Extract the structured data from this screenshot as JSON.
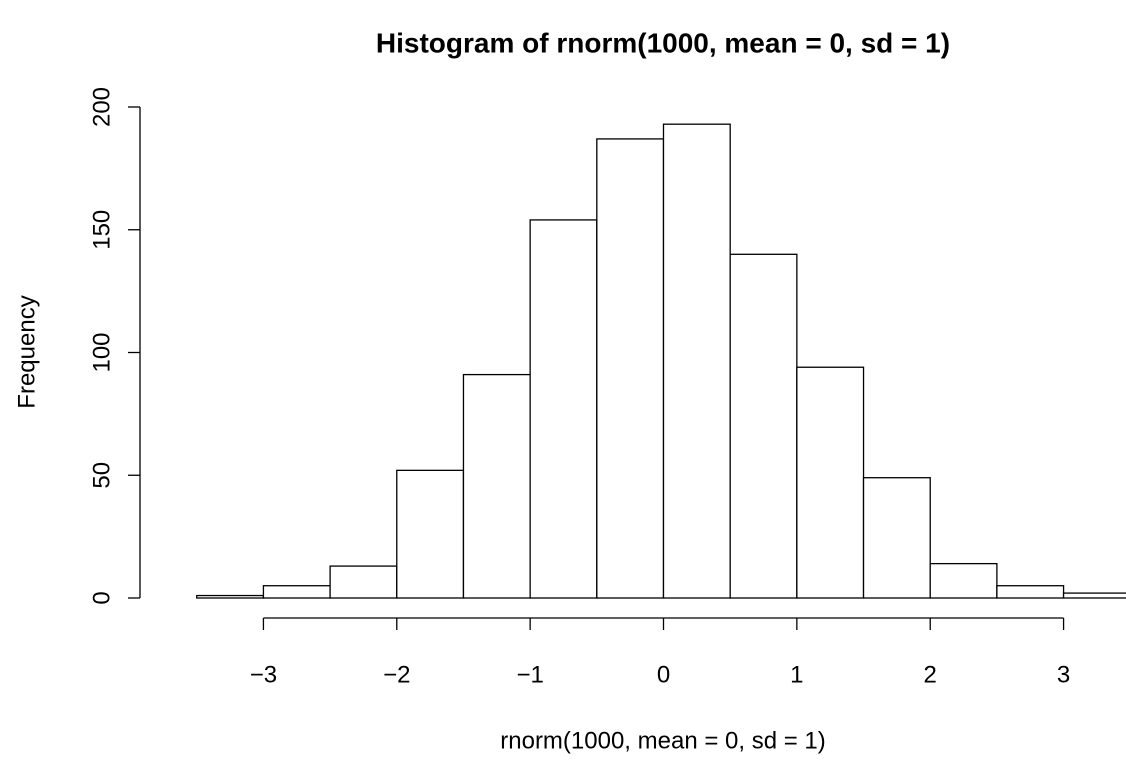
{
  "chart_data": {
    "type": "histogram",
    "title": "Histogram of rnorm(1000, mean = 0, sd = 1)",
    "xlabel": "rnorm(1000, mean = 0, sd = 1)",
    "ylabel": "Frequency",
    "bins": [
      -3.5,
      -3,
      -2.5,
      -2,
      -1.5,
      -1,
      -0.5,
      0,
      0.5,
      1,
      1.5,
      2,
      2.5,
      3,
      3.5
    ],
    "values": [
      1,
      5,
      13,
      52,
      91,
      154,
      187,
      193,
      140,
      94,
      49,
      14,
      5,
      2
    ],
    "color": "#ffffff",
    "xlim": [
      -3.5,
      3.5
    ],
    "ylim": [
      0,
      200
    ],
    "xticks": [
      {
        "value": -3,
        "label": "−3"
      },
      {
        "value": -2,
        "label": "−2"
      },
      {
        "value": -1,
        "label": "−1"
      },
      0,
      1,
      2,
      3
    ],
    "yticks": [
      0,
      50,
      100,
      150,
      200
    ]
  }
}
